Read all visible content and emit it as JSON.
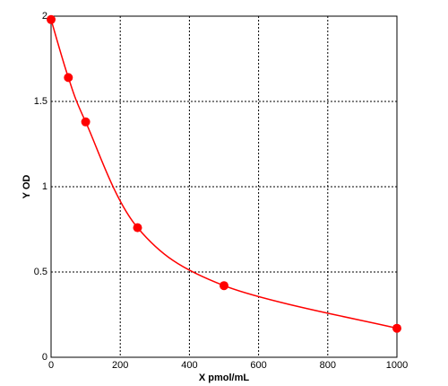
{
  "chart_data": {
    "type": "scatter",
    "x_label": "X pmol/mL",
    "y_label": "Y OD",
    "x": [
      0,
      50,
      100,
      250,
      500,
      1000
    ],
    "series": [
      {
        "color": "#ff0000",
        "values": [
          1.98,
          1.64,
          1.38,
          0.76,
          0.42,
          0.17
        ]
      }
    ],
    "line": true,
    "xlim": [
      0,
      1000
    ],
    "xticks": [
      0,
      200,
      400,
      600,
      800,
      1000
    ],
    "ylim": [
      0,
      2
    ],
    "yticks": [
      0,
      0.5,
      1,
      1.5,
      2
    ],
    "grid": true
  }
}
